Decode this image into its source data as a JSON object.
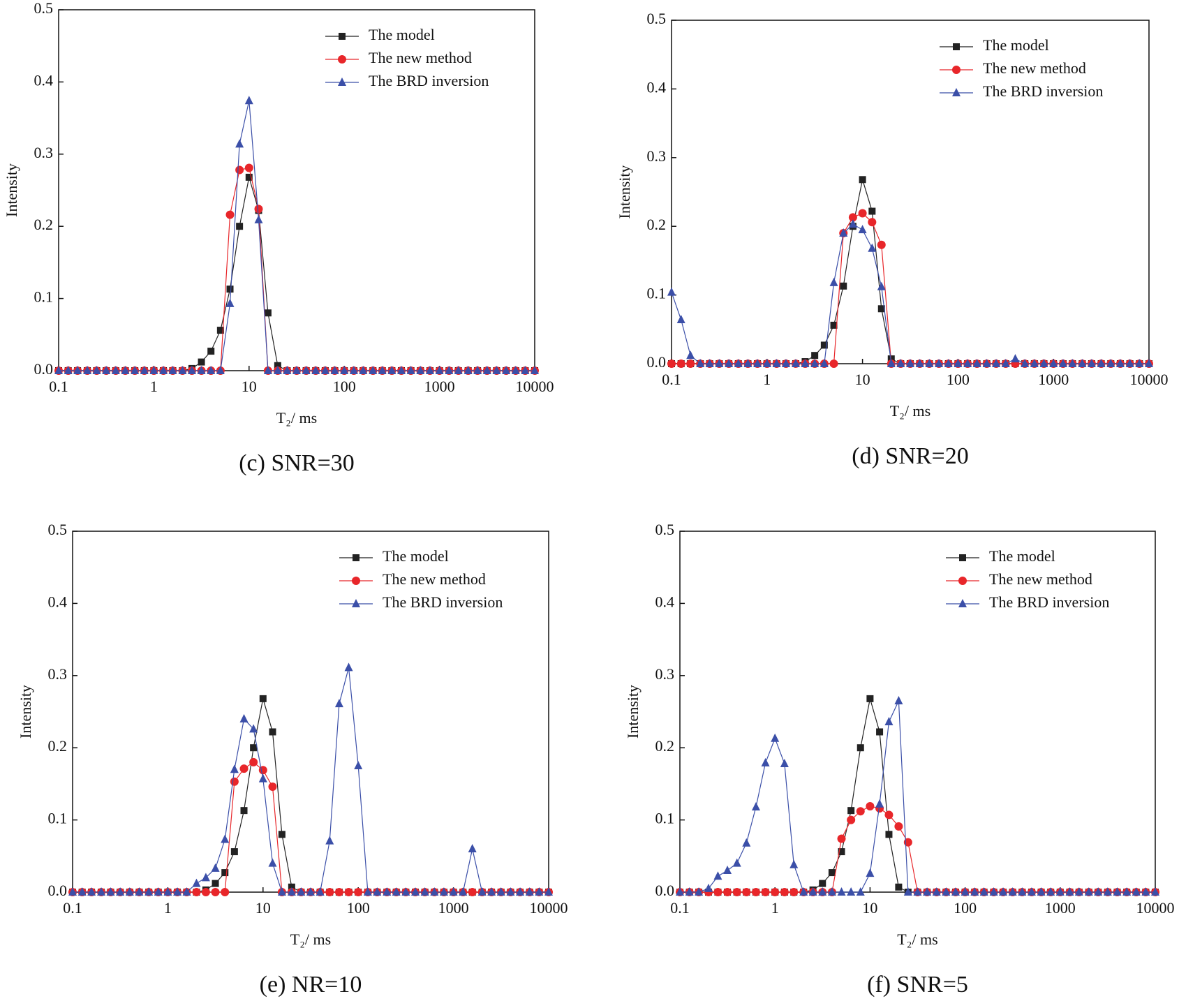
{
  "chart_data": [
    {
      "type": "line",
      "caption": "(c) SNR=30",
      "x_label": "T₂/ ms",
      "y_label": "Intensity",
      "xscale": "log",
      "xlim": [
        0.1,
        10000
      ],
      "xticks": [
        0.1,
        1,
        10,
        100,
        1000,
        10000
      ],
      "ylim": [
        0,
        0.5
      ],
      "yticks": [
        {
          "value": 0,
          "label": "0.0"
        },
        0.1,
        0.2,
        0.3,
        0.4,
        0.5
      ],
      "legend": "upper right",
      "x": [
        0.1,
        0.126,
        0.158,
        0.2,
        0.251,
        0.316,
        0.398,
        0.501,
        0.631,
        0.794,
        1,
        1.26,
        1.58,
        2,
        2.51,
        3.16,
        3.98,
        5.01,
        6.31,
        7.94,
        10,
        12.6,
        15.8,
        20,
        25.1,
        31.6,
        39.8,
        50.1,
        63.1,
        79.4,
        100,
        126,
        158,
        200,
        251,
        316,
        398,
        501,
        631,
        794,
        1000,
        1260,
        1580,
        2000,
        2510,
        3160,
        3980,
        5010,
        6310,
        7940,
        10000
      ],
      "series": [
        {
          "name": "The model",
          "color": "#222222",
          "marker": "square",
          "values": [
            0,
            0,
            0,
            0,
            0,
            0,
            0,
            0,
            0,
            0,
            0,
            0,
            0,
            0,
            0.003,
            0.012,
            0.027,
            0.056,
            0.113,
            0.2,
            0.268,
            0.222,
            0.08,
            0.007,
            0,
            0,
            0,
            0,
            0,
            0,
            0,
            0,
            0,
            0,
            0,
            0,
            0,
            0,
            0,
            0,
            0,
            0,
            0,
            0,
            0,
            0,
            0,
            0,
            0,
            0,
            0
          ]
        },
        {
          "name": "The new method",
          "color": "#e8262a",
          "marker": "circle",
          "values": [
            0,
            0,
            0,
            0,
            0,
            0,
            0,
            0,
            0,
            0,
            0,
            0,
            0,
            0,
            0,
            0,
            0,
            0,
            0.216,
            0.278,
            0.281,
            0.224,
            0,
            0,
            0,
            0,
            0,
            0,
            0,
            0,
            0,
            0,
            0,
            0,
            0,
            0,
            0,
            0,
            0,
            0,
            0,
            0,
            0,
            0,
            0,
            0,
            0,
            0,
            0,
            0,
            0
          ]
        },
        {
          "name": "The BRD inversion",
          "color": "#3b4fa8",
          "marker": "triangle",
          "values": [
            0,
            0,
            0,
            0,
            0,
            0,
            0,
            0,
            0,
            0,
            0,
            0,
            0,
            0,
            0,
            0,
            0,
            0,
            0.093,
            0.314,
            0.374,
            0.209,
            0,
            0,
            0,
            0,
            0,
            0,
            0,
            0,
            0,
            0,
            0,
            0,
            0,
            0,
            0,
            0,
            0,
            0,
            0,
            0,
            0,
            0,
            0,
            0,
            0,
            0,
            0,
            0,
            0
          ]
        }
      ]
    },
    {
      "type": "line",
      "caption": "(d) SNR=20",
      "x_label": "T₂/ ms",
      "y_label": "Intensity",
      "xscale": "log",
      "xlim": [
        0.1,
        10000
      ],
      "xticks": [
        0.1,
        1,
        10,
        100,
        1000,
        10000
      ],
      "ylim": [
        0,
        0.5
      ],
      "yticks": [
        {
          "value": 0,
          "label": "0.0"
        },
        0.1,
        0.2,
        0.3,
        0.4,
        0.5
      ],
      "legend": "upper right",
      "x": [
        0.1,
        0.126,
        0.158,
        0.2,
        0.251,
        0.316,
        0.398,
        0.501,
        0.631,
        0.794,
        1,
        1.26,
        1.58,
        2,
        2.51,
        3.16,
        3.98,
        5.01,
        6.31,
        7.94,
        10,
        12.6,
        15.8,
        20,
        25.1,
        31.6,
        39.8,
        50.1,
        63.1,
        79.4,
        100,
        126,
        158,
        200,
        251,
        316,
        398,
        501,
        631,
        794,
        1000,
        1260,
        1580,
        2000,
        2510,
        3160,
        3980,
        5010,
        6310,
        7940,
        10000
      ],
      "series": [
        {
          "name": "The model",
          "color": "#222222",
          "marker": "square",
          "values": [
            0,
            0,
            0,
            0,
            0,
            0,
            0,
            0,
            0,
            0,
            0,
            0,
            0,
            0,
            0.003,
            0.012,
            0.027,
            0.056,
            0.113,
            0.2,
            0.268,
            0.222,
            0.08,
            0.007,
            0,
            0,
            0,
            0,
            0,
            0,
            0,
            0,
            0,
            0,
            0,
            0,
            0,
            0,
            0,
            0,
            0,
            0,
            0,
            0,
            0,
            0,
            0,
            0,
            0,
            0,
            0
          ]
        },
        {
          "name": "The new method",
          "color": "#e8262a",
          "marker": "circle",
          "values": [
            0,
            0,
            0,
            0,
            0,
            0,
            0,
            0,
            0,
            0,
            0,
            0,
            0,
            0,
            0,
            0,
            0,
            0,
            0.19,
            0.213,
            0.219,
            0.206,
            0.173,
            0,
            0,
            0,
            0,
            0,
            0,
            0,
            0,
            0,
            0,
            0,
            0,
            0,
            0,
            0,
            0,
            0,
            0,
            0,
            0,
            0,
            0,
            0,
            0,
            0,
            0,
            0,
            0
          ]
        },
        {
          "name": "The BRD inversion",
          "color": "#3b4fa8",
          "marker": "triangle",
          "values": [
            0.104,
            0.064,
            0.012,
            0,
            0,
            0,
            0,
            0,
            0,
            0,
            0,
            0,
            0,
            0,
            0,
            0,
            0,
            0.118,
            0.19,
            0.203,
            0.195,
            0.168,
            0.112,
            0,
            0,
            0,
            0,
            0,
            0,
            0,
            0,
            0,
            0,
            0,
            0,
            0,
            0.007,
            0,
            0,
            0,
            0,
            0,
            0,
            0,
            0,
            0,
            0,
            0,
            0,
            0,
            0
          ]
        }
      ]
    },
    {
      "type": "line",
      "caption": "(e) NR=10",
      "x_label": "T₂/ ms",
      "y_label": "Intensity",
      "xscale": "log",
      "xlim": [
        0.1,
        10000
      ],
      "xticks": [
        0.1,
        1,
        10,
        100,
        1000,
        10000
      ],
      "ylim": [
        0,
        0.5
      ],
      "yticks": [
        {
          "value": 0,
          "label": "0.0"
        },
        0.1,
        0.2,
        0.3,
        0.4,
        0.5
      ],
      "legend": "upper right",
      "x": [
        0.1,
        0.126,
        0.158,
        0.2,
        0.251,
        0.316,
        0.398,
        0.501,
        0.631,
        0.794,
        1,
        1.26,
        1.58,
        2,
        2.51,
        3.16,
        3.98,
        5.01,
        6.31,
        7.94,
        10,
        12.6,
        15.8,
        20,
        25.1,
        31.6,
        39.8,
        50.1,
        63.1,
        79.4,
        100,
        126,
        158,
        200,
        251,
        316,
        398,
        501,
        631,
        794,
        1000,
        1260,
        1580,
        2000,
        2510,
        3160,
        3980,
        5010,
        6310,
        7940,
        10000
      ],
      "series": [
        {
          "name": "The model",
          "color": "#222222",
          "marker": "square",
          "values": [
            0,
            0,
            0,
            0,
            0,
            0,
            0,
            0,
            0,
            0,
            0,
            0,
            0,
            0,
            0.003,
            0.012,
            0.027,
            0.056,
            0.113,
            0.2,
            0.268,
            0.222,
            0.08,
            0.007,
            0,
            0,
            0,
            0,
            0,
            0,
            0,
            0,
            0,
            0,
            0,
            0,
            0,
            0,
            0,
            0,
            0,
            0,
            0,
            0,
            0,
            0,
            0,
            0,
            0,
            0,
            0
          ]
        },
        {
          "name": "The new method",
          "color": "#e8262a",
          "marker": "circle",
          "values": [
            0,
            0,
            0,
            0,
            0,
            0,
            0,
            0,
            0,
            0,
            0,
            0,
            0,
            0,
            0,
            0,
            0,
            0.153,
            0.171,
            0.18,
            0.169,
            0.146,
            0,
            0,
            0,
            0,
            0,
            0,
            0,
            0,
            0,
            0,
            0,
            0,
            0,
            0,
            0,
            0,
            0,
            0,
            0,
            0,
            0,
            0,
            0,
            0,
            0,
            0,
            0,
            0,
            0
          ]
        },
        {
          "name": "The BRD inversion",
          "color": "#3b4fa8",
          "marker": "triangle",
          "values": [
            0,
            0,
            0,
            0,
            0,
            0,
            0,
            0,
            0,
            0,
            0,
            0,
            0,
            0.012,
            0.02,
            0.033,
            0.073,
            0.17,
            0.24,
            0.226,
            0.157,
            0.04,
            0,
            0,
            0,
            0,
            0,
            0.071,
            0.261,
            0.311,
            0.175,
            0,
            0,
            0,
            0,
            0,
            0,
            0,
            0,
            0,
            0,
            0,
            0.06,
            0,
            0,
            0,
            0,
            0,
            0,
            0,
            0
          ]
        }
      ]
    },
    {
      "type": "line",
      "caption": "(f) SNR=5",
      "x_label": "T₂/ ms",
      "y_label": "Intensity",
      "xscale": "log",
      "xlim": [
        0.1,
        10000
      ],
      "xticks": [
        0.1,
        1,
        10,
        100,
        1000,
        10000
      ],
      "ylim": [
        0,
        0.5
      ],
      "yticks": [
        {
          "value": 0,
          "label": "0.0"
        },
        0.1,
        0.2,
        0.3,
        0.4,
        0.5
      ],
      "legend": "upper right",
      "x": [
        0.1,
        0.126,
        0.158,
        0.2,
        0.251,
        0.316,
        0.398,
        0.501,
        0.631,
        0.794,
        1,
        1.26,
        1.58,
        2,
        2.51,
        3.16,
        3.98,
        5.01,
        6.31,
        7.94,
        10,
        12.6,
        15.8,
        20,
        25.1,
        31.6,
        39.8,
        50.1,
        63.1,
        79.4,
        100,
        126,
        158,
        200,
        251,
        316,
        398,
        501,
        631,
        794,
        1000,
        1260,
        1580,
        2000,
        2510,
        3160,
        3980,
        5010,
        6310,
        7940,
        10000
      ],
      "series": [
        {
          "name": "The model",
          "color": "#222222",
          "marker": "square",
          "values": [
            0,
            0,
            0,
            0,
            0,
            0,
            0,
            0,
            0,
            0,
            0,
            0,
            0,
            0,
            0.003,
            0.012,
            0.027,
            0.056,
            0.113,
            0.2,
            0.268,
            0.222,
            0.08,
            0.007,
            0,
            0,
            0,
            0,
            0,
            0,
            0,
            0,
            0,
            0,
            0,
            0,
            0,
            0,
            0,
            0,
            0,
            0,
            0,
            0,
            0,
            0,
            0,
            0,
            0,
            0,
            0
          ]
        },
        {
          "name": "The new method",
          "color": "#e8262a",
          "marker": "circle",
          "values": [
            0,
            0,
            0,
            0,
            0,
            0,
            0,
            0,
            0,
            0,
            0,
            0,
            0,
            0,
            0,
            0,
            0,
            0.074,
            0.1,
            0.112,
            0.119,
            0.116,
            0.107,
            0.091,
            0.069,
            0,
            0,
            0,
            0,
            0,
            0,
            0,
            0,
            0,
            0,
            0,
            0,
            0,
            0,
            0,
            0,
            0,
            0,
            0,
            0,
            0,
            0,
            0,
            0,
            0,
            0
          ]
        },
        {
          "name": "The BRD inversion",
          "color": "#3b4fa8",
          "marker": "triangle",
          "values": [
            0,
            0,
            0,
            0.005,
            0.022,
            0.03,
            0.04,
            0.068,
            0.118,
            0.179,
            0.213,
            0.178,
            0.038,
            0,
            0,
            0,
            0,
            0,
            0,
            0,
            0.026,
            0.122,
            0.236,
            0.265,
            0,
            0,
            0,
            0,
            0,
            0,
            0,
            0,
            0,
            0,
            0,
            0,
            0,
            0,
            0,
            0,
            0,
            0,
            0,
            0,
            0,
            0,
            0,
            0,
            0,
            0,
            0
          ]
        }
      ]
    }
  ]
}
